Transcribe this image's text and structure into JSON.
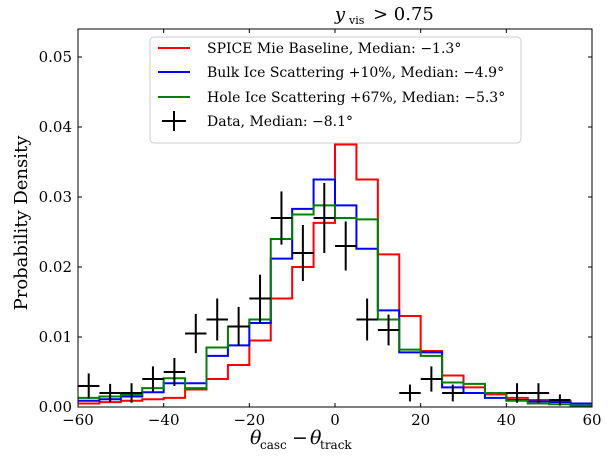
{
  "chart_data": {
    "type": "line",
    "title": "y_vis > 0.75",
    "xlabel": "θ_casc − θ_track",
    "ylabel": "Probability Density",
    "xlim": [
      -60,
      60
    ],
    "ylim": [
      0,
      0.054
    ],
    "xticks": [
      -60,
      -40,
      -20,
      0,
      20,
      40,
      60
    ],
    "xtick_labels": [
      "−60",
      "−40",
      "−20",
      "0",
      "20",
      "40",
      "60"
    ],
    "yticks": [
      0,
      0.01,
      0.02,
      0.03,
      0.04,
      0.05
    ],
    "ytick_labels": [
      "0.00",
      "0.01",
      "0.02",
      "0.03",
      "0.04",
      "0.05"
    ],
    "grid": false,
    "legend_position": "top-center",
    "bin_edges": [
      -60,
      -55,
      -50,
      -45,
      -40,
      -35,
      -30,
      -25,
      -20,
      -15,
      -10,
      -5,
      0,
      5,
      10,
      15,
      20,
      25,
      30,
      35,
      40,
      45,
      50,
      55,
      60
    ],
    "series": [
      {
        "name": "SPICE Mie Baseline, Median: −1.3°",
        "style": "step",
        "color": "#ff0000",
        "values": [
          0.0005,
          0.0007,
          0.0009,
          0.0011,
          0.0013,
          0.0025,
          0.004,
          0.006,
          0.0095,
          0.0155,
          0.02,
          0.0263,
          0.0375,
          0.0325,
          0.0218,
          0.013,
          0.008,
          0.0045,
          0.0028,
          0.0018,
          0.0013,
          0.001,
          0.0008,
          0.0005
        ]
      },
      {
        "name": "Bulk Ice Scattering +10%, Median: −4.9°",
        "style": "step",
        "color": "#0000ff",
        "values": [
          0.0009,
          0.0011,
          0.0015,
          0.0021,
          0.0034,
          0.0034,
          0.0073,
          0.0088,
          0.012,
          0.0212,
          0.0283,
          0.0325,
          0.0288,
          0.0226,
          0.0138,
          0.0078,
          0.0078,
          0.0028,
          0.002,
          0.0013,
          0.001,
          0.0008,
          0.0007,
          0.0005
        ]
      },
      {
        "name": "Hole Ice Scattering +67%, Median: −5.3°",
        "style": "step",
        "color": "#008000",
        "values": [
          0.0013,
          0.0015,
          0.0018,
          0.0027,
          0.0041,
          0.0027,
          0.0085,
          0.0115,
          0.0125,
          0.024,
          0.0275,
          0.0288,
          0.027,
          0.0268,
          0.0125,
          0.0082,
          0.0073,
          0.0035,
          0.0033,
          0.002,
          0.0009,
          0.0005,
          0.0004,
          0.0002
        ]
      },
      {
        "name": "Data, Median: −8.1°",
        "style": "errorbar",
        "color": "#000000",
        "x": [
          -57.5,
          -52.5,
          -47.5,
          -42.5,
          -37.5,
          -32.5,
          -27.5,
          -22.5,
          -17.5,
          -12.5,
          -7.5,
          -2.5,
          2.5,
          7.5,
          12.5,
          17.5,
          22.5,
          27.5,
          42.5,
          47.5,
          52.5
        ],
        "y": [
          0.003,
          0.002,
          0.002,
          0.004,
          0.005,
          0.0105,
          0.0125,
          0.0115,
          0.0155,
          0.027,
          0.022,
          0.027,
          0.023,
          0.0125,
          0.011,
          0.002,
          0.004,
          0.002,
          0.002,
          0.002,
          0.001
        ],
        "yerr": [
          0.0018,
          0.0013,
          0.0014,
          0.0018,
          0.002,
          0.0028,
          0.003,
          0.0028,
          0.0034,
          0.0038,
          0.004,
          0.005,
          0.0035,
          0.003,
          0.0022,
          0.0012,
          0.0018,
          0.0012,
          0.0014,
          0.0014,
          0.0008
        ]
      }
    ]
  }
}
